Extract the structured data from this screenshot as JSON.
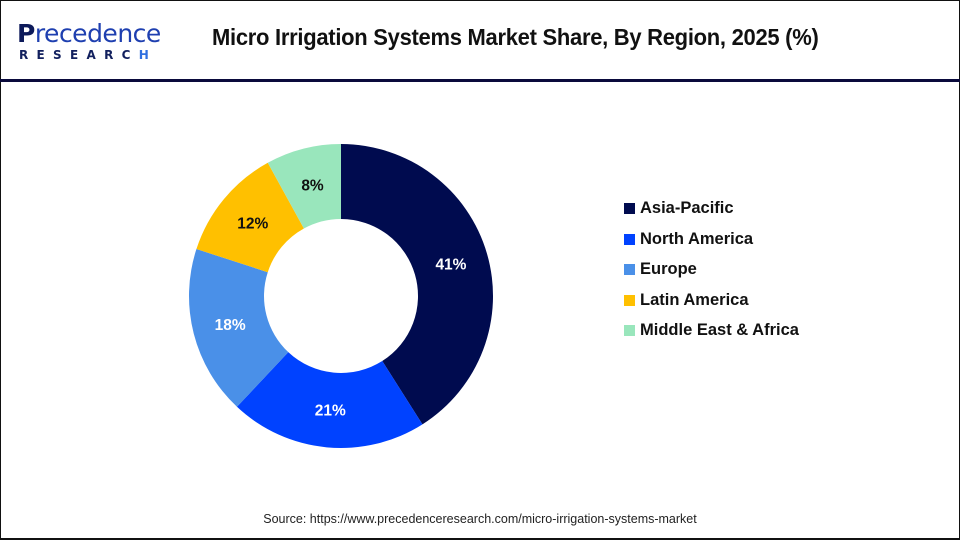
{
  "header": {
    "logo": {
      "line1_first": "P",
      "line1_rest": "recedence",
      "line2_main": "RESEARC",
      "line2_last": "H"
    },
    "title": "Micro Irrigation Systems Market Share, By Region, 2025 (%)"
  },
  "chart_data": {
    "type": "pie",
    "subtype": "donut",
    "title": "Micro Irrigation Systems Market Share, By Region, 2025 (%)",
    "categories": [
      "Asia-Pacific",
      "North America",
      "Europe",
      "Latin America",
      "Middle East & Africa"
    ],
    "values": [
      41,
      21,
      18,
      12,
      8
    ],
    "unit": "%",
    "colors": [
      "#000b4f",
      "#0042ff",
      "#4a90e8",
      "#ffc000",
      "#99e6bc"
    ],
    "label_colors": [
      "#ffffff",
      "#ffffff",
      "#ffffff",
      "#111111",
      "#111111"
    ],
    "labels": [
      "41%",
      "21%",
      "18%",
      "12%",
      "8%"
    ],
    "start_angle": "12 o'clock, clockwise",
    "legend_position": "right"
  },
  "legend": {
    "items": [
      {
        "label": "Asia-Pacific",
        "color": "#000b4f"
      },
      {
        "label": "North America",
        "color": "#0042ff"
      },
      {
        "label": "Europe",
        "color": "#4a90e8"
      },
      {
        "label": "Latin America",
        "color": "#ffc000"
      },
      {
        "label": "Middle East & Africa",
        "color": "#99e6bc"
      }
    ]
  },
  "footer": {
    "source": "Source: https://www.precedenceresearch.com/micro-irrigation-systems-market"
  }
}
